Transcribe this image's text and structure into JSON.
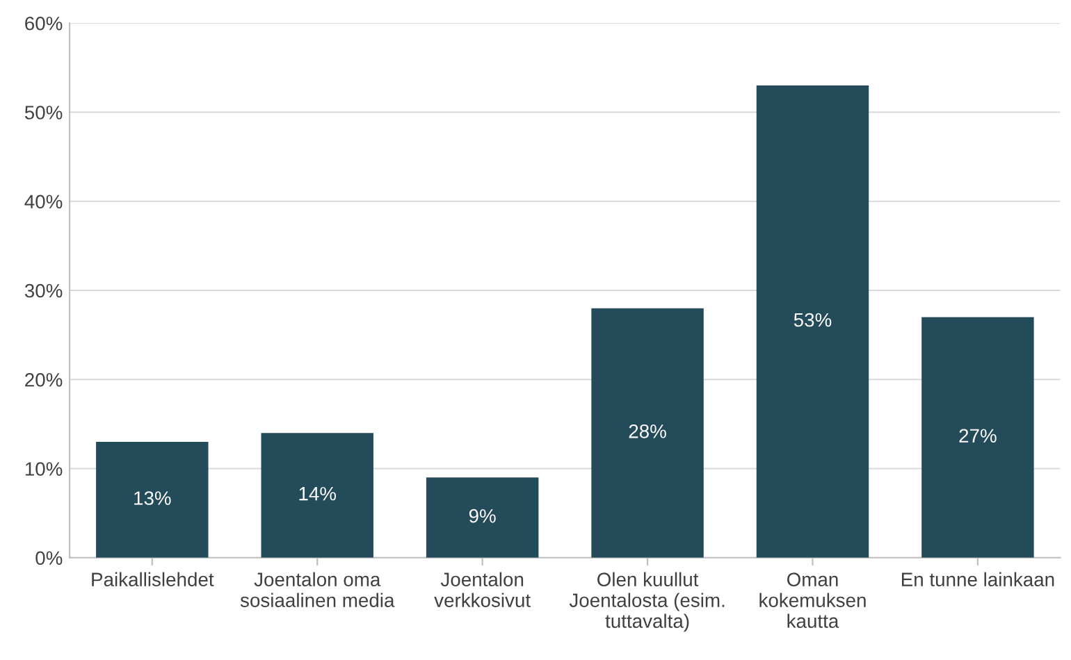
{
  "chart_data": {
    "type": "bar",
    "categories": [
      "Paikallislehdet",
      "Joentalon oma\nsosiaalinen media",
      "Joentalon\nverkkosivut",
      "Olen kuullut\nJoentalosta (esim.\ntuttavalta)",
      "Oman\nkokemuksen\nkautta",
      "En tunne lainkaan"
    ],
    "values": [
      13,
      14,
      9,
      28,
      53,
      27
    ],
    "value_labels": [
      "13%",
      "14%",
      "9%",
      "28%",
      "53%",
      "27%"
    ],
    "color": "#244b5a",
    "ylim": [
      0,
      60
    ],
    "yticks": [
      {
        "value": 0,
        "label": "0%"
      },
      {
        "value": 10,
        "label": "10%"
      },
      {
        "value": 20,
        "label": "20%"
      },
      {
        "value": 30,
        "label": "30%"
      },
      {
        "value": 40,
        "label": "40%"
      },
      {
        "value": 50,
        "label": "50%"
      },
      {
        "value": 60,
        "label": "60%"
      }
    ],
    "grid": "y"
  }
}
